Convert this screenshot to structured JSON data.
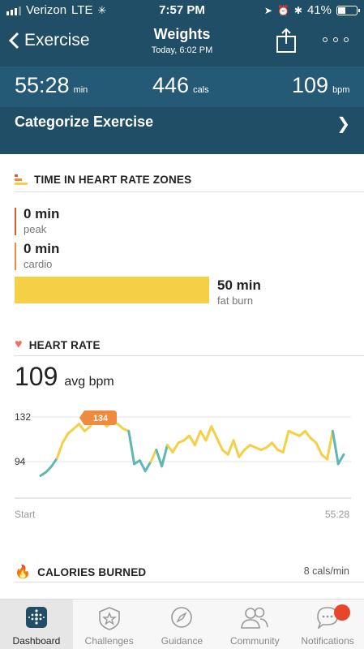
{
  "status_bar": {
    "carrier": "Verizon",
    "network": "LTE",
    "time": "7:57 PM",
    "battery": "41%",
    "battery_level": 0.41
  },
  "nav": {
    "back_label": "Exercise",
    "title": "Weights",
    "subtitle": "Today, 6:02 PM"
  },
  "stats": {
    "duration": {
      "value": "55:28",
      "unit": "min"
    },
    "calories": {
      "value": "446",
      "unit": "cals"
    },
    "heart_rate": {
      "value": "109",
      "unit": "bpm"
    }
  },
  "categorize_label": "Categorize Exercise",
  "zones": {
    "title": "TIME IN HEART RATE ZONES",
    "items": [
      {
        "value": "0 min",
        "label": "peak",
        "color": "#e4572e"
      },
      {
        "value": "0 min",
        "label": "cardio",
        "color": "#f08a3c"
      },
      {
        "value": "50 min",
        "label": "fat burn",
        "color": "#f5cf45"
      }
    ]
  },
  "heart_rate": {
    "title": "HEART RATE",
    "avg_value": "109",
    "avg_label": "avg bpm"
  },
  "chart_data": {
    "type": "line",
    "x_start_label": "Start",
    "x_end_label": "55:28",
    "y_ticks": [
      132,
      94
    ],
    "ylim": [
      78,
      146
    ],
    "peak_label": "134",
    "series": [
      {
        "x": [
          0,
          1,
          2,
          3,
          4,
          5,
          6,
          7,
          8,
          9,
          10,
          11,
          12,
          13,
          14,
          15,
          16,
          17,
          18,
          19,
          20,
          21,
          22,
          23,
          24,
          25,
          26,
          27,
          28,
          29,
          30,
          31,
          32,
          33,
          34,
          35,
          36,
          37,
          38,
          39,
          40,
          41,
          42,
          43,
          44,
          45,
          46,
          47,
          48,
          49,
          50,
          51,
          52,
          53,
          54,
          55
        ],
        "values": [
          82,
          85,
          90,
          97,
          110,
          118,
          122,
          126,
          120,
          124,
          132,
          130,
          124,
          128,
          126,
          122,
          120,
          92,
          95,
          86,
          94,
          104,
          90,
          108,
          102,
          110,
          112,
          116,
          108,
          120,
          112,
          124,
          114,
          104,
          100,
          112,
          98,
          104,
          108,
          106,
          104,
          106,
          110,
          104,
          102,
          120,
          118,
          116,
          120,
          114,
          110,
          100,
          96,
          120,
          92,
          100
        ]
      }
    ]
  },
  "calories": {
    "title": "CALORIES BURNED",
    "rate": "8 cals/min"
  },
  "tabs": [
    "Dashboard",
    "Challenges",
    "Guidance",
    "Community",
    "Notifications"
  ],
  "colors": {
    "header": "#1f4e66",
    "stats_band": "#245a75",
    "fat_burn": "#f5cf45",
    "peak": "#e4572e",
    "cardio": "#f08a3c",
    "below_zone": "#5db8b4"
  }
}
